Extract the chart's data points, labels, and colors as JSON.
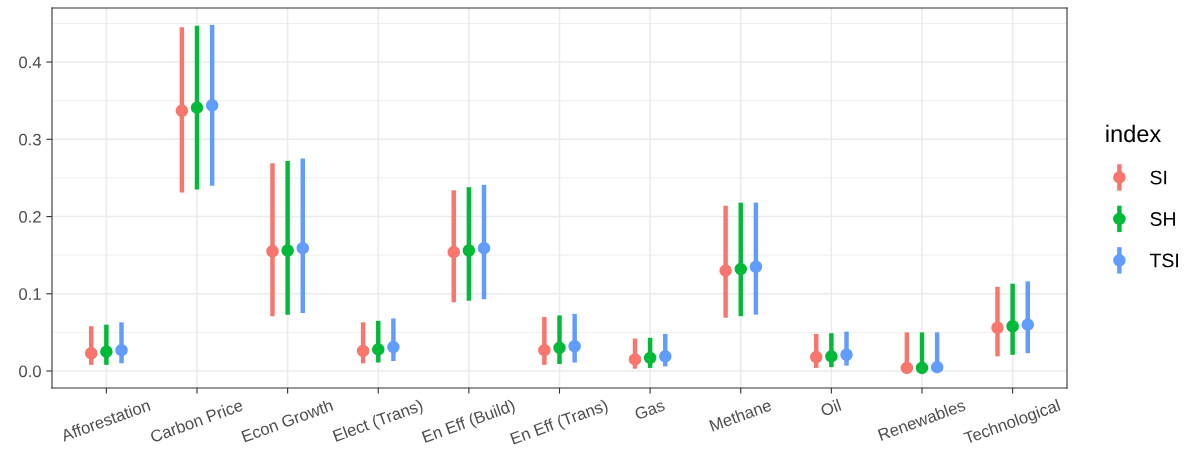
{
  "chart_data": {
    "type": "scatter",
    "categories": [
      "Afforestation",
      "Carbon Price",
      "Econ Growth",
      "Elect (Trans)",
      "En Eff (Build)",
      "En Eff (Trans)",
      "Gas",
      "Methane",
      "Oil",
      "Renewables",
      "Technological"
    ],
    "series": [
      {
        "name": "SI",
        "color": "#f8766d",
        "values": [
          0.023,
          0.337,
          0.155,
          0.026,
          0.154,
          0.027,
          0.015,
          0.13,
          0.018,
          0.004,
          0.056
        ],
        "errors": [
          [
            0.008,
            0.058
          ],
          [
            0.231,
            0.445
          ],
          [
            0.071,
            0.269
          ],
          [
            0.01,
            0.063
          ],
          [
            0.089,
            0.234
          ],
          [
            0.008,
            0.07
          ],
          [
            0.003,
            0.042
          ],
          [
            0.069,
            0.214
          ],
          [
            0.004,
            0.048
          ],
          [
            0.003,
            0.05
          ],
          [
            0.019,
            0.109
          ]
        ]
      },
      {
        "name": "SH",
        "color": "#00ba38",
        "values": [
          0.025,
          0.341,
          0.156,
          0.028,
          0.156,
          0.03,
          0.017,
          0.132,
          0.019,
          0.004,
          0.058
        ],
        "errors": [
          [
            0.008,
            0.06
          ],
          [
            0.235,
            0.447
          ],
          [
            0.073,
            0.272
          ],
          [
            0.011,
            0.065
          ],
          [
            0.091,
            0.238
          ],
          [
            0.009,
            0.072
          ],
          [
            0.004,
            0.043
          ],
          [
            0.071,
            0.218
          ],
          [
            0.005,
            0.049
          ],
          [
            0.003,
            0.05
          ],
          [
            0.021,
            0.113
          ]
        ]
      },
      {
        "name": "TSI",
        "color": "#619cff",
        "values": [
          0.027,
          0.344,
          0.159,
          0.031,
          0.159,
          0.032,
          0.019,
          0.135,
          0.021,
          0.005,
          0.06
        ],
        "errors": [
          [
            0.01,
            0.063
          ],
          [
            0.24,
            0.448
          ],
          [
            0.075,
            0.275
          ],
          [
            0.013,
            0.068
          ],
          [
            0.093,
            0.241
          ],
          [
            0.011,
            0.074
          ],
          [
            0.006,
            0.048
          ],
          [
            0.073,
            0.218
          ],
          [
            0.007,
            0.051
          ],
          [
            0.004,
            0.05
          ],
          [
            0.023,
            0.116
          ]
        ]
      }
    ],
    "ylim": [
      -0.022,
      0.47
    ],
    "yticks": [
      {
        "value": 0,
        "label": "0.0"
      },
      0.1,
      0.2,
      0.3,
      0.4
    ],
    "grid": true,
    "legend": "right",
    "legend_title": "index",
    "marker": "circle"
  }
}
